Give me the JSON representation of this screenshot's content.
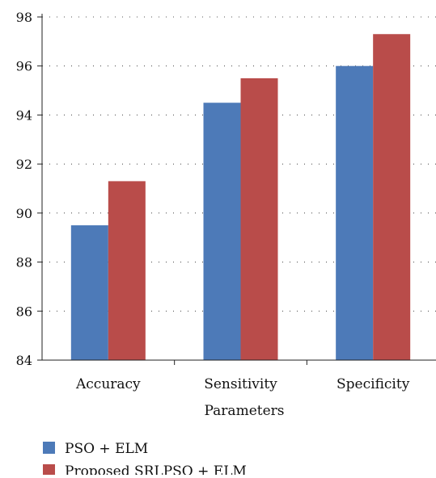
{
  "chart_data": {
    "type": "bar",
    "categories": [
      "Accuracy",
      "Sensitivity",
      "Specificity"
    ],
    "series": [
      {
        "name": "PSO + ELM",
        "values": [
          89.5,
          94.5,
          96.0
        ],
        "color": "#4d7ab8"
      },
      {
        "name": "Proposed SRLPSO + ELM",
        "values": [
          91.3,
          95.5,
          97.3
        ],
        "color": "#b94c4a"
      }
    ],
    "xlabel": "Parameters",
    "ylabel": "",
    "ylim": [
      84,
      98
    ],
    "yticks": [
      "84",
      "86",
      "88",
      "90",
      "92",
      "94",
      "96",
      "98"
    ],
    "grid": true,
    "legend_position": "bottom-left"
  }
}
